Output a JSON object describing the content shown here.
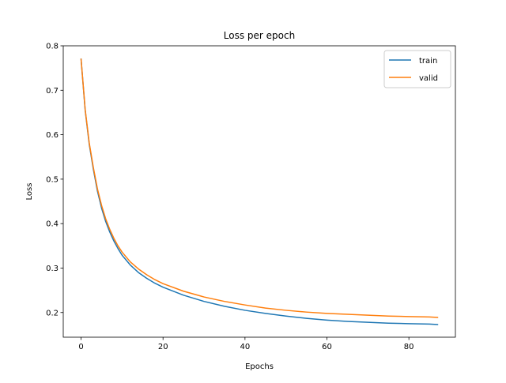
{
  "chart_data": {
    "type": "line",
    "title": "Loss per epoch",
    "xlabel": "Epochs",
    "ylabel": "Loss",
    "xlim": [
      -4.35,
      91.35
    ],
    "ylim": [
      0.1445,
      0.8
    ],
    "xticks": [
      0,
      20,
      40,
      60,
      80
    ],
    "xtick_labels": [
      "0",
      "20",
      "40",
      "60",
      "80"
    ],
    "yticks": [
      0.2,
      0.3,
      0.4,
      0.5,
      0.6,
      0.7,
      0.8
    ],
    "ytick_labels": [
      "0.2",
      "0.3",
      "0.4",
      "0.5",
      "0.6",
      "0.7",
      "0.8"
    ],
    "grid": false,
    "legend_position": "top-right",
    "x": [
      0,
      1,
      2,
      3,
      4,
      5,
      6,
      7,
      8,
      9,
      10,
      12,
      14,
      16,
      18,
      20,
      25,
      30,
      35,
      40,
      45,
      50,
      55,
      60,
      65,
      70,
      75,
      80,
      85,
      87
    ],
    "series": [
      {
        "name": "train",
        "color": "#1f77b4",
        "values": [
          0.77,
          0.655,
          0.578,
          0.522,
          0.473,
          0.435,
          0.405,
          0.381,
          0.361,
          0.344,
          0.329,
          0.307,
          0.29,
          0.277,
          0.266,
          0.257,
          0.239,
          0.225,
          0.214,
          0.205,
          0.198,
          0.192,
          0.187,
          0.183,
          0.18,
          0.178,
          0.176,
          0.175,
          0.174,
          0.173
        ]
      },
      {
        "name": "valid",
        "color": "#ff7f0e",
        "values": [
          0.77,
          0.657,
          0.581,
          0.526,
          0.478,
          0.441,
          0.411,
          0.387,
          0.367,
          0.35,
          0.336,
          0.314,
          0.298,
          0.285,
          0.274,
          0.265,
          0.248,
          0.235,
          0.225,
          0.217,
          0.21,
          0.205,
          0.201,
          0.198,
          0.196,
          0.194,
          0.192,
          0.191,
          0.19,
          0.189
        ]
      }
    ]
  }
}
